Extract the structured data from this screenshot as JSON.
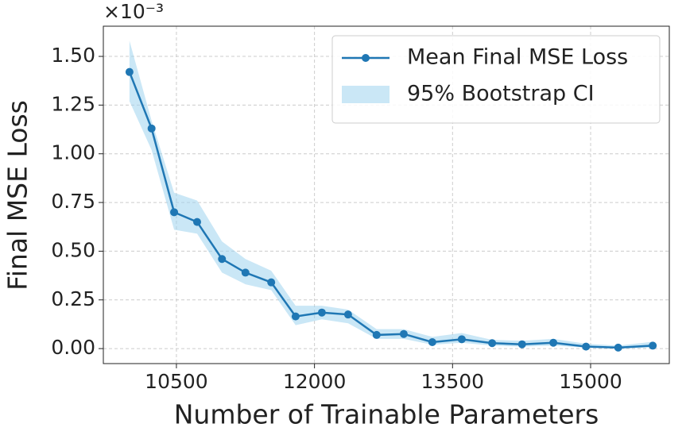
{
  "chart_data": {
    "type": "line",
    "xlabel": "Number of Trainable Parameters",
    "ylabel": "Final MSE Loss",
    "y_offset_label": "×10⁻³",
    "x": [
      9990,
      10230,
      10475,
      10725,
      10995,
      11250,
      11530,
      11795,
      12080,
      12365,
      12675,
      12970,
      13280,
      13600,
      13930,
      14255,
      14595,
      14950,
      15300,
      15675
    ],
    "series": [
      {
        "name": "Mean Final MSE Loss",
        "color": "#1f77b4",
        "values": [
          1.42,
          1.13,
          0.7,
          0.65,
          0.46,
          0.39,
          0.34,
          0.165,
          0.185,
          0.175,
          0.07,
          0.075,
          0.033,
          0.048,
          0.028,
          0.022,
          0.03,
          0.01,
          0.005,
          0.015
        ]
      }
    ],
    "ci": {
      "name": "95% Bootstrap CI",
      "color": "#9fd4ef",
      "lower": [
        1.27,
        1.02,
        0.61,
        0.59,
        0.39,
        0.33,
        0.3,
        0.12,
        0.15,
        0.13,
        0.05,
        0.05,
        0.02,
        0.03,
        0.015,
        0.01,
        0.015,
        0.005,
        0.0,
        0.005
      ],
      "upper": [
        1.58,
        1.17,
        0.8,
        0.76,
        0.55,
        0.46,
        0.4,
        0.22,
        0.22,
        0.2,
        0.1,
        0.1,
        0.06,
        0.08,
        0.045,
        0.04,
        0.05,
        0.025,
        0.015,
        0.035
      ]
    },
    "xlim": [
      9706,
      15855
    ],
    "ylim": [
      -0.077,
      1.655
    ],
    "xticks": [
      10500,
      12000,
      13500,
      15000
    ],
    "yticks": [
      {
        "value": 0,
        "label": "0.00"
      },
      {
        "value": 0.25,
        "label": "0.25"
      },
      {
        "value": 0.5,
        "label": "0.50"
      },
      {
        "value": 0.75,
        "label": "0.75"
      },
      {
        "value": 1,
        "label": "1.00"
      },
      {
        "value": 1.25,
        "label": "1.25"
      },
      {
        "value": 1.5,
        "label": "1.50"
      }
    ],
    "grid": true,
    "legend": "upper right"
  }
}
